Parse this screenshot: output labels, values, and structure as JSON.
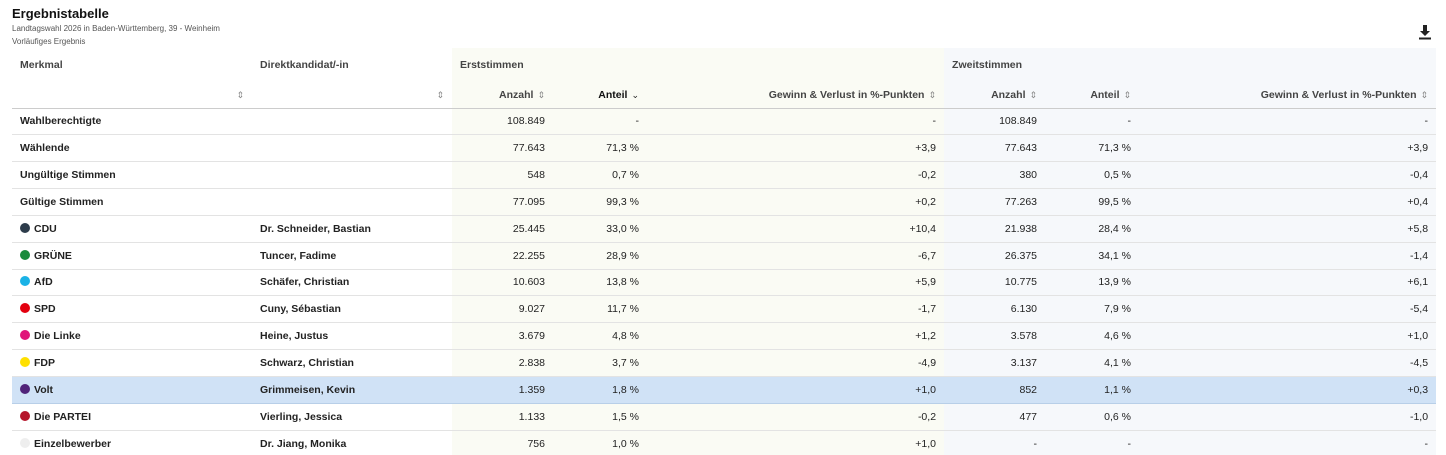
{
  "header": {
    "title": "Ergebnistabelle",
    "subtitle": "Landtagswahl 2026 in Baden-Württemberg, 39 - Weinheim",
    "status": "Vorläufiges Ergebnis"
  },
  "columns": {
    "merkmal": "Merkmal",
    "kandidat": "Direktkandidat/-in",
    "erststimmen": "Erststimmen",
    "zweitstimmen": "Zweitstimmen",
    "anzahl": "Anzahl",
    "anteil": "Anteil",
    "gewinn": "Gewinn & Verlust in %-Punkten"
  },
  "icons": {
    "sort": "sort-icon",
    "sort_desc": "chevron-down-icon",
    "download": "download-icon"
  },
  "colors": {
    "highlight_row": "#d0e2f6"
  },
  "rows": [
    {
      "merkmal": "Wahlberechtigte",
      "kandidat": "",
      "e_anzahl": "108.849",
      "e_anteil": "-",
      "e_gewinn": "-",
      "z_anzahl": "108.849",
      "z_anteil": "-",
      "z_gewinn": "-",
      "color": ""
    },
    {
      "merkmal": "Wählende",
      "kandidat": "",
      "e_anzahl": "77.643",
      "e_anteil": "71,3 %",
      "e_gewinn": "+3,9",
      "z_anzahl": "77.643",
      "z_anteil": "71,3 %",
      "z_gewinn": "+3,9",
      "color": ""
    },
    {
      "merkmal": "Ungültige Stimmen",
      "kandidat": "",
      "e_anzahl": "548",
      "e_anteil": "0,7 %",
      "e_gewinn": "-0,2",
      "z_anzahl": "380",
      "z_anteil": "0,5 %",
      "z_gewinn": "-0,4",
      "color": ""
    },
    {
      "merkmal": "Gültige Stimmen",
      "kandidat": "",
      "e_anzahl": "77.095",
      "e_anteil": "99,3 %",
      "e_gewinn": "+0,2",
      "z_anzahl": "77.263",
      "z_anteil": "99,5 %",
      "z_gewinn": "+0,4",
      "color": ""
    },
    {
      "merkmal": "CDU",
      "kandidat": "Dr. Schneider, Bastian",
      "e_anzahl": "25.445",
      "e_anteil": "33,0 %",
      "e_gewinn": "+10,4",
      "z_anzahl": "21.938",
      "z_anteil": "28,4 %",
      "z_gewinn": "+5,8",
      "color": "#2d3c4b"
    },
    {
      "merkmal": "GRÜNE",
      "kandidat": "Tuncer, Fadime",
      "e_anzahl": "22.255",
      "e_anteil": "28,9 %",
      "e_gewinn": "-6,7",
      "z_anzahl": "26.375",
      "z_anteil": "34,1 %",
      "z_gewinn": "-1,4",
      "color": "#1a8a3c"
    },
    {
      "merkmal": "AfD",
      "kandidat": "Schäfer, Christian",
      "e_anzahl": "10.603",
      "e_anteil": "13,8 %",
      "e_gewinn": "+5,9",
      "z_anzahl": "10.775",
      "z_anteil": "13,9 %",
      "z_gewinn": "+6,1",
      "color": "#1ab2e6"
    },
    {
      "merkmal": "SPD",
      "kandidat": "Cuny, Sébastian",
      "e_anzahl": "9.027",
      "e_anteil": "11,7 %",
      "e_gewinn": "-1,7",
      "z_anzahl": "6.130",
      "z_anteil": "7,9 %",
      "z_gewinn": "-5,4",
      "color": "#e3000f"
    },
    {
      "merkmal": "Die Linke",
      "kandidat": "Heine, Justus",
      "e_anzahl": "3.679",
      "e_anteil": "4,8 %",
      "e_gewinn": "+1,2",
      "z_anzahl": "3.578",
      "z_anteil": "4,6 %",
      "z_gewinn": "+1,0",
      "color": "#e0157a"
    },
    {
      "merkmal": "FDP",
      "kandidat": "Schwarz, Christian",
      "e_anzahl": "2.838",
      "e_anteil": "3,7 %",
      "e_gewinn": "-4,9",
      "z_anzahl": "3.137",
      "z_anteil": "4,1 %",
      "z_gewinn": "-4,5",
      "color": "#ffe000"
    },
    {
      "merkmal": "Volt",
      "kandidat": "Grimmeisen, Kevin",
      "e_anzahl": "1.359",
      "e_anteil": "1,8 %",
      "e_gewinn": "+1,0",
      "z_anzahl": "852",
      "z_anteil": "1,1 %",
      "z_gewinn": "+0,3",
      "color": "#502379",
      "highlight": true
    },
    {
      "merkmal": "Die PARTEI",
      "kandidat": "Vierling, Jessica",
      "e_anzahl": "1.133",
      "e_anteil": "1,5 %",
      "e_gewinn": "-0,2",
      "z_anzahl": "477",
      "z_anteil": "0,6 %",
      "z_gewinn": "-1,0",
      "color": "#b5152b"
    },
    {
      "merkmal": "Einzelbewerber",
      "kandidat": "Dr. Jiang, Monika",
      "e_anzahl": "756",
      "e_anteil": "1,0 %",
      "e_gewinn": "+1,0",
      "z_anzahl": "-",
      "z_anteil": "-",
      "z_gewinn": "-",
      "color": "#eeeeee"
    }
  ]
}
